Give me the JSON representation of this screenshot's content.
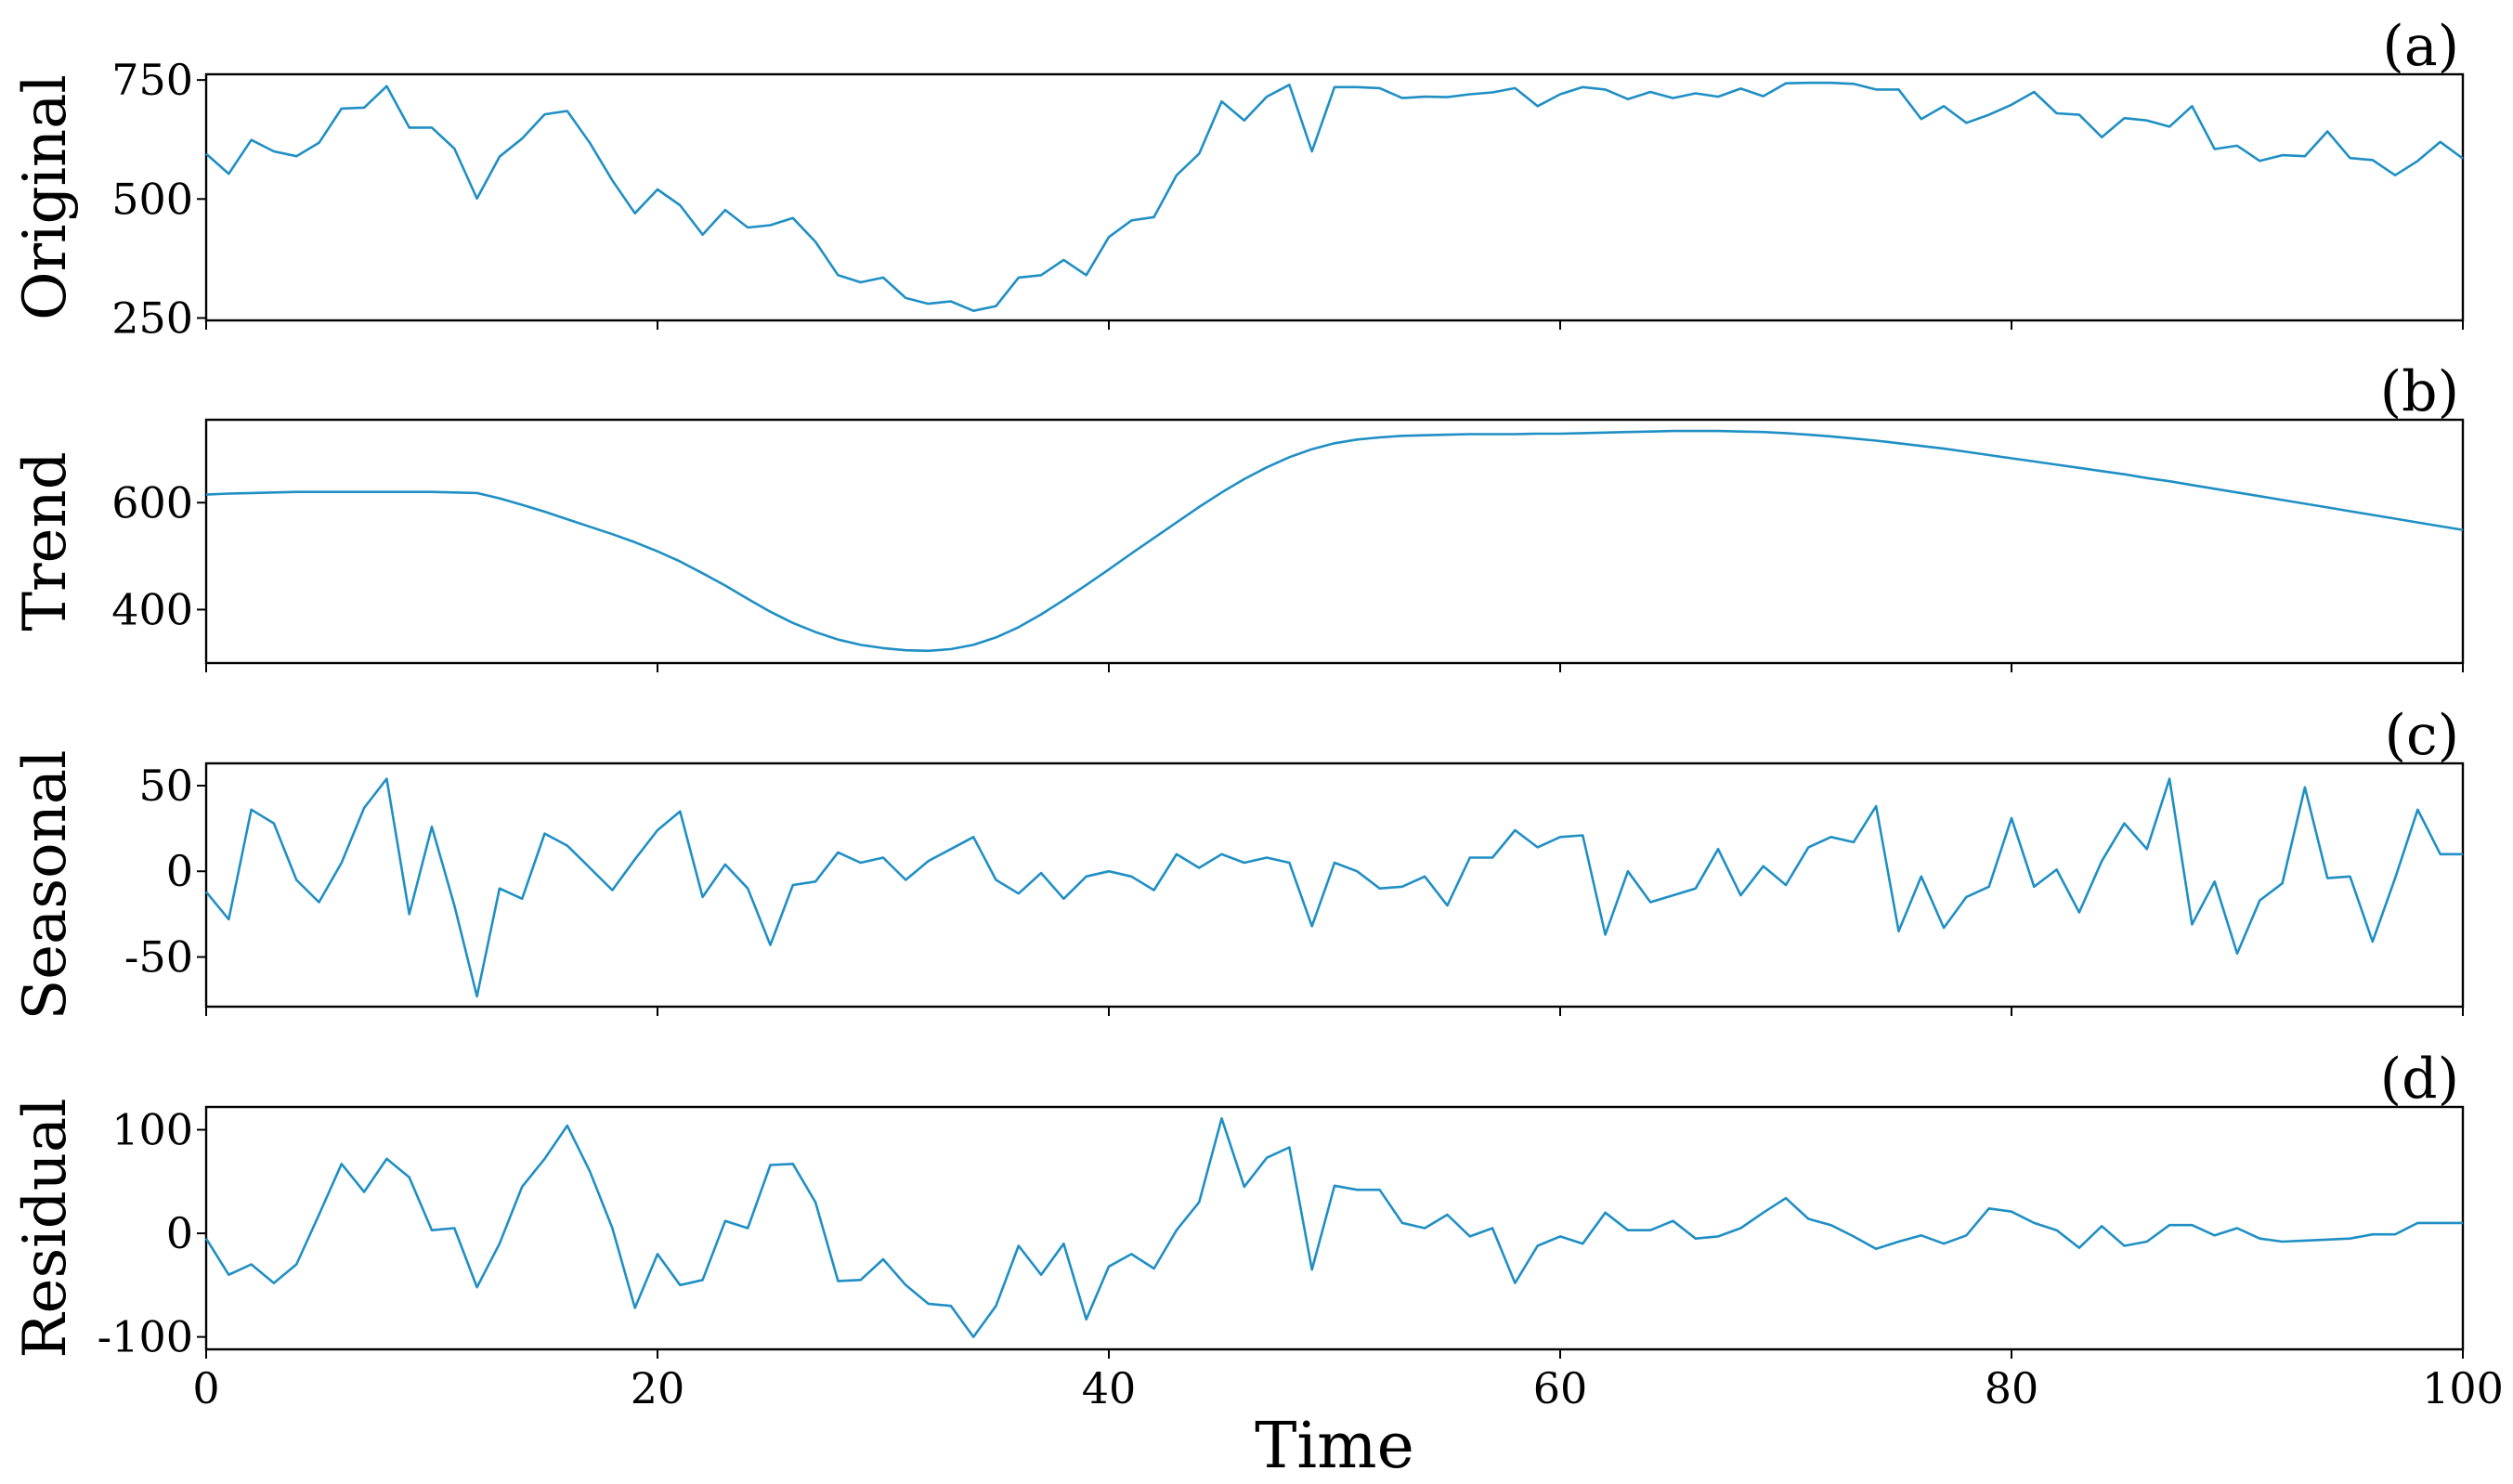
{
  "figure": {
    "xlabel": "Time",
    "series_color": "#1f8fc4"
  },
  "chart_data": [
    {
      "type": "line",
      "tag": "(a)",
      "ylabel": "Original",
      "xlim": [
        0,
        100
      ],
      "ylim": [
        245,
        762
      ],
      "yticks": [
        250,
        500,
        750
      ],
      "xticks": [
        0,
        20,
        40,
        60,
        80,
        100
      ],
      "show_xtick_labels": false,
      "values": [
        595,
        553,
        624,
        600,
        590,
        618,
        690,
        692,
        737,
        650,
        650,
        606,
        501,
        589,
        627,
        678,
        685,
        618,
        539,
        470,
        520,
        487,
        425,
        477,
        440,
        445,
        460,
        410,
        340,
        325,
        335,
        292,
        280,
        285,
        265,
        275,
        335,
        340,
        372,
        340,
        420,
        455,
        462,
        550,
        595,
        705,
        665,
        715,
        740,
        600,
        735,
        735,
        733,
        712,
        715,
        714,
        720,
        724,
        733,
        695,
        720,
        735,
        730,
        710,
        725,
        712,
        722,
        715,
        732,
        716,
        743,
        744,
        744,
        742,
        730,
        730,
        668,
        695,
        660,
        677,
        698,
        725,
        680,
        677,
        630,
        670,
        665,
        652,
        695,
        605,
        612,
        580,
        592,
        590,
        642,
        586,
        582,
        550,
        580,
        620,
        585
      ]
    },
    {
      "type": "line",
      "tag": "(b)",
      "ylabel": "Trend",
      "xlim": [
        0,
        100
      ],
      "ylim": [
        300,
        755
      ],
      "yticks": [
        400,
        600
      ],
      "xticks": [
        0,
        20,
        40,
        60,
        80,
        100
      ],
      "show_xtick_labels": false,
      "values": [
        615,
        617,
        618,
        619,
        620,
        620,
        620,
        620,
        620,
        620,
        620,
        619,
        618,
        608,
        596,
        583,
        569,
        555,
        541,
        526,
        509,
        490,
        468,
        445,
        420,
        396,
        375,
        358,
        344,
        334,
        328,
        324,
        323,
        326,
        334,
        348,
        367,
        391,
        418,
        446,
        475,
        505,
        534,
        563,
        592,
        619,
        644,
        666,
        685,
        700,
        711,
        718,
        722,
        725,
        726,
        727,
        728,
        728,
        728,
        729,
        729,
        730,
        731,
        732,
        733,
        734,
        734,
        734,
        733,
        732,
        730,
        727,
        724,
        720,
        716,
        711,
        706,
        701,
        695,
        689,
        683,
        677,
        671,
        665,
        659,
        653,
        646,
        640,
        633,
        626,
        619,
        612,
        605,
        598,
        591,
        584,
        577,
        570,
        563,
        556,
        549
      ]
    },
    {
      "type": "line",
      "tag": "(c)",
      "ylabel": "Seasonal",
      "xlim": [
        0,
        100
      ],
      "ylim": [
        -79,
        63
      ],
      "yticks": [
        -50,
        0,
        50
      ],
      "xticks": [
        0,
        20,
        40,
        60,
        80,
        100
      ],
      "show_xtick_labels": false,
      "values": [
        -12,
        -28,
        36,
        28,
        -5,
        -18,
        5,
        37,
        54,
        -25,
        26,
        -20,
        -73,
        -10,
        -16,
        22,
        15,
        2,
        -11,
        7,
        24,
        35,
        -15,
        4,
        -10,
        -43,
        -8,
        -6,
        11,
        5,
        8,
        -5,
        6,
        13,
        20,
        -5,
        -13,
        -1,
        -16,
        -3,
        0,
        -3,
        -11,
        10,
        2,
        10,
        5,
        8,
        5,
        -32,
        5,
        0,
        -10,
        -9,
        -3,
        -20,
        8,
        8,
        24,
        14,
        20,
        21,
        -37,
        0,
        -18,
        -14,
        -10,
        13,
        -14,
        3,
        -8,
        14,
        20,
        17,
        38,
        -35,
        -3,
        -33,
        -15,
        -9,
        31,
        -9,
        1,
        -24,
        6,
        28,
        13,
        54,
        -31,
        -6,
        -48,
        -17,
        -7,
        49,
        -4,
        -3,
        -41,
        -4,
        36,
        10,
        10
      ]
    },
    {
      "type": "line",
      "tag": "(d)",
      "ylabel": "Residual",
      "xlim": [
        0,
        100
      ],
      "ylim": [
        -112,
        122
      ],
      "yticks": [
        -100,
        0,
        100
      ],
      "xticks": [
        0,
        20,
        40,
        60,
        80,
        100
      ],
      "xticklabels": [
        "0",
        "20",
        "40",
        "60",
        "80",
        "100"
      ],
      "show_xtick_labels": true,
      "values": [
        -5,
        -40,
        -30,
        -48,
        -30,
        18,
        67,
        40,
        72,
        54,
        3,
        5,
        -52,
        -10,
        45,
        72,
        104,
        60,
        5,
        -72,
        -20,
        -50,
        -45,
        12,
        5,
        66,
        67,
        30,
        -46,
        -45,
        -25,
        -50,
        -68,
        -70,
        -100,
        -70,
        -12,
        -40,
        -10,
        -83,
        -32,
        -20,
        -34,
        3,
        30,
        111,
        45,
        73,
        83,
        -35,
        46,
        42,
        42,
        10,
        5,
        18,
        -3,
        5,
        -48,
        -12,
        -3,
        -10,
        20,
        3,
        3,
        12,
        -5,
        -3,
        5,
        20,
        34,
        14,
        8,
        -3,
        -15,
        -8,
        -2,
        -10,
        -2,
        24,
        21,
        10,
        3,
        -14,
        7,
        -12,
        -8,
        8,
        8,
        -2,
        5,
        -5,
        -8,
        -7,
        -6,
        -5,
        -1,
        -1,
        10,
        10,
        10
      ]
    }
  ]
}
